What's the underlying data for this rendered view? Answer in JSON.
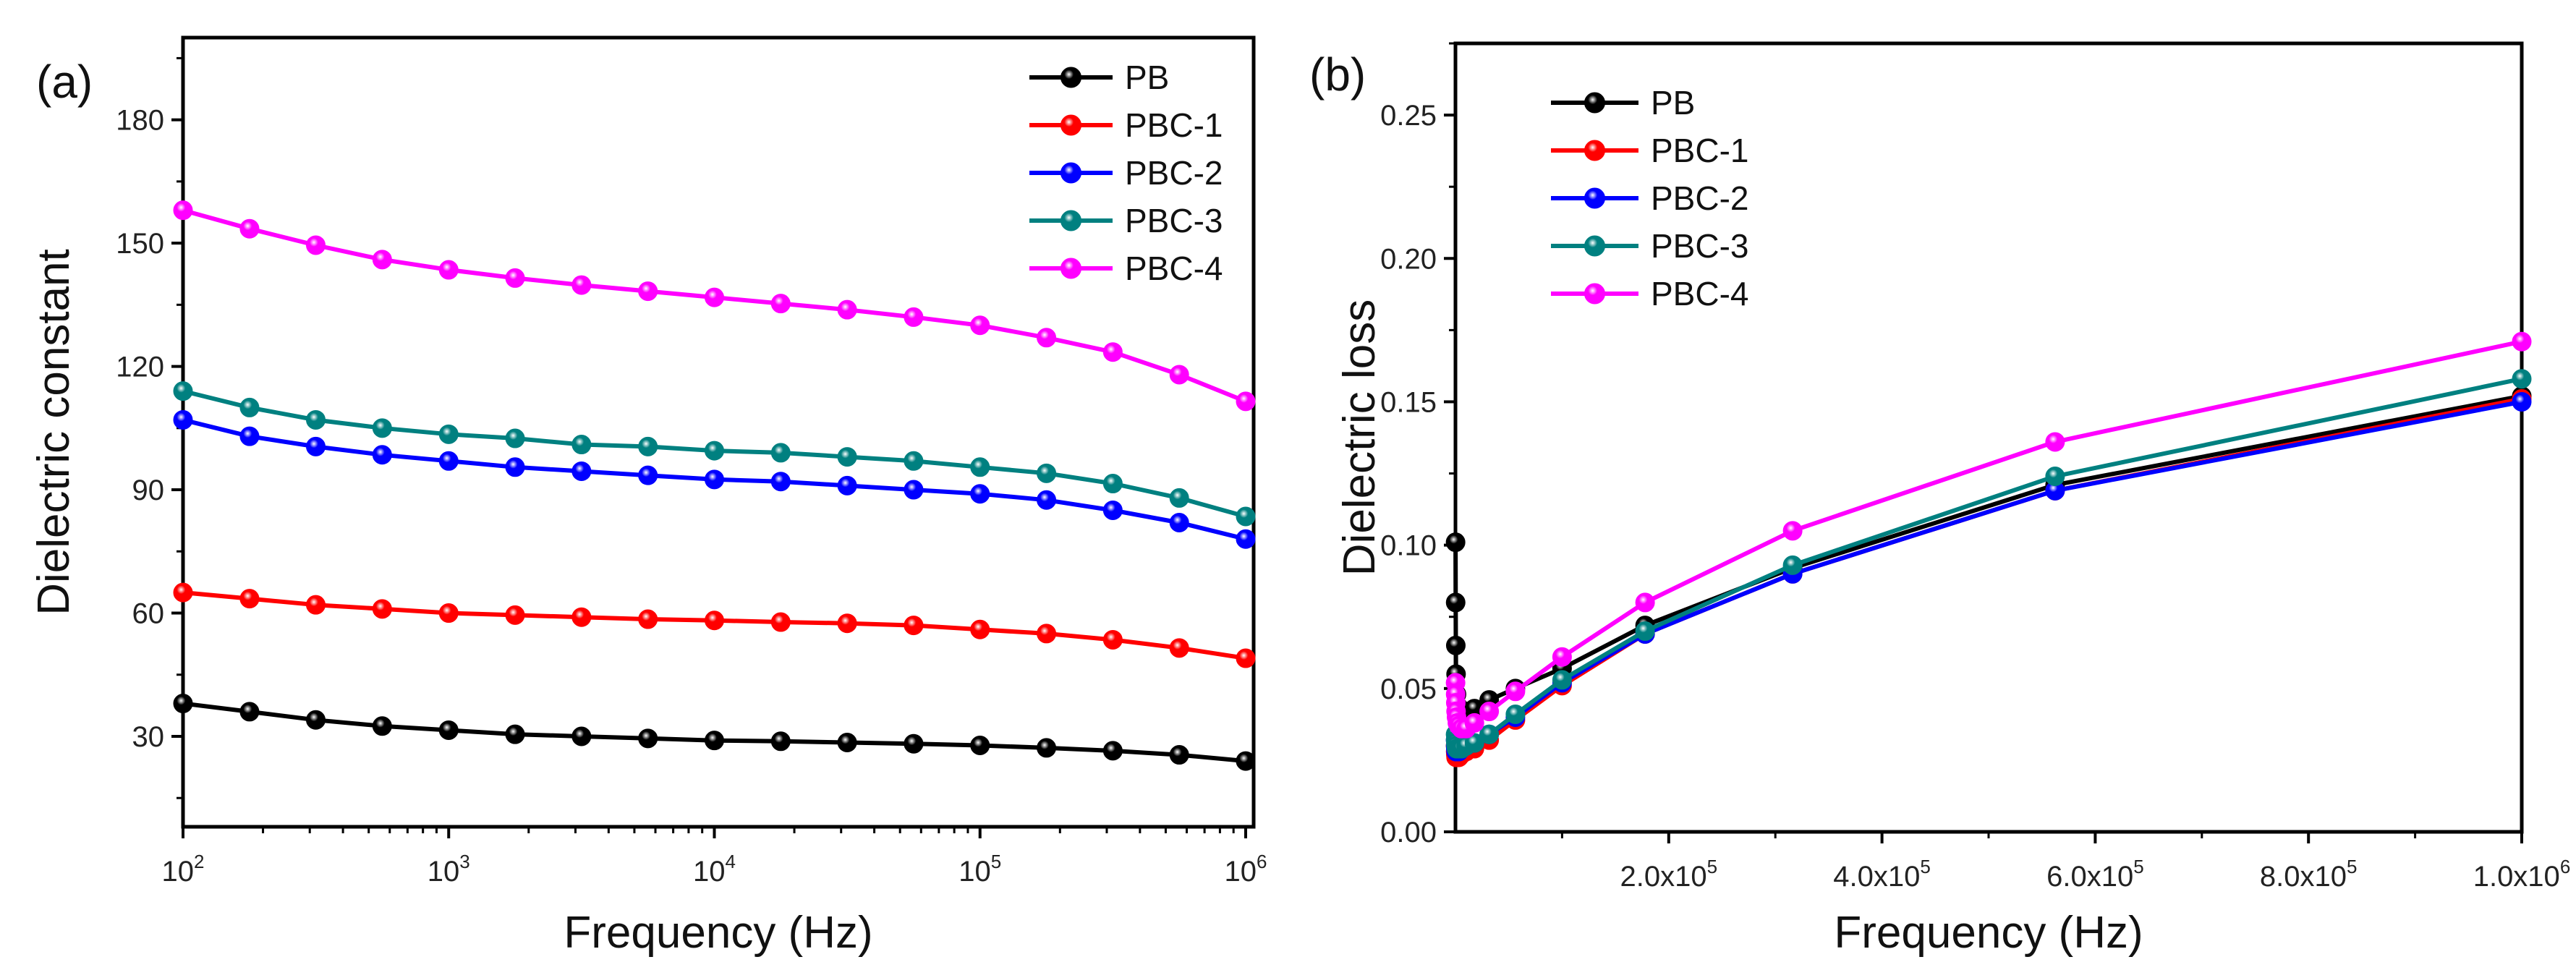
{
  "chart_data": [
    {
      "type": "line",
      "panel_label": "(a)",
      "xlabel": "Frequency (Hz)",
      "ylabel": "Dielectric constant",
      "xscale": "log",
      "xlim": [
        100,
        1000000
      ],
      "ylim": [
        8,
        200
      ],
      "grid": false,
      "legend_placement": "top-right",
      "x_ticks": [
        {
          "value": 100,
          "base": "10",
          "exp": "2"
        },
        {
          "value": 1000,
          "base": "10",
          "exp": "3"
        },
        {
          "value": 10000,
          "base": "10",
          "exp": "4"
        },
        {
          "value": 100000,
          "base": "10",
          "exp": "5"
        },
        {
          "value": 1000000,
          "base": "10",
          "exp": "6"
        }
      ],
      "y_ticks": [
        {
          "value": 30,
          "label": "30"
        },
        {
          "value": 60,
          "label": "60"
        },
        {
          "value": 90,
          "label": "90"
        },
        {
          "value": 120,
          "label": "120"
        },
        {
          "value": 150,
          "label": "150"
        },
        {
          "value": 180,
          "label": "180"
        }
      ],
      "x": [
        100,
        178,
        316,
        562,
        1000,
        1778,
        3162,
        5623,
        10000,
        17783,
        31623,
        56234,
        100000,
        177828,
        316228,
        562341,
        1000000
      ],
      "series": [
        {
          "name": "PB",
          "color": "#000000",
          "values": [
            38,
            36,
            34,
            32.5,
            31.5,
            30.5,
            30,
            29.5,
            29,
            28.8,
            28.5,
            28.2,
            27.8,
            27.2,
            26.5,
            25.5,
            24
          ]
        },
        {
          "name": "PBC-1",
          "color": "#ff0000",
          "values": [
            65,
            63.5,
            62,
            61,
            60,
            59.5,
            59,
            58.5,
            58.2,
            57.8,
            57.5,
            57,
            56,
            55,
            53.5,
            51.5,
            49
          ]
        },
        {
          "name": "PBC-2",
          "color": "#0000ff",
          "values": [
            107,
            103,
            100.5,
            98.5,
            97,
            95.5,
            94.5,
            93.5,
            92.5,
            92,
            91,
            90,
            89,
            87.5,
            85,
            82,
            78
          ]
        },
        {
          "name": "PBC-3",
          "color": "#008080",
          "values": [
            114,
            110,
            107,
            105,
            103.5,
            102.5,
            101,
            100.5,
            99.5,
            99,
            98,
            97,
            95.5,
            94,
            91.5,
            88,
            83.5
          ]
        },
        {
          "name": "PBC-4",
          "color": "#ff00ff",
          "values": [
            158,
            153.5,
            149.5,
            146,
            143.5,
            141.5,
            139.8,
            138.3,
            136.8,
            135.3,
            133.8,
            132,
            130,
            127,
            123.5,
            118,
            111.5
          ]
        }
      ]
    },
    {
      "type": "line",
      "panel_label": "(b)",
      "xlabel": "Frequency (Hz)",
      "ylabel": "Dielectric loss",
      "xscale": "linear",
      "xlim": [
        0,
        1000000
      ],
      "ylim": [
        0,
        0.275
      ],
      "grid": false,
      "legend_placement": "top-left",
      "x_ticks": [
        {
          "value": 200000,
          "base": "2.0x10",
          "exp": "5"
        },
        {
          "value": 400000,
          "base": "4.0x10",
          "exp": "5"
        },
        {
          "value": 600000,
          "base": "6.0x10",
          "exp": "5"
        },
        {
          "value": 800000,
          "base": "8.0x10",
          "exp": "5"
        },
        {
          "value": 1000000,
          "base": "1.0x10",
          "exp": "6"
        }
      ],
      "y_ticks": [
        {
          "value": 0,
          "label": "0.00"
        },
        {
          "value": 0.05,
          "label": "0.05"
        },
        {
          "value": 0.1,
          "label": "0.10"
        },
        {
          "value": 0.15,
          "label": "0.15"
        },
        {
          "value": 0.2,
          "label": "0.20"
        },
        {
          "value": 0.25,
          "label": "0.25"
        }
      ],
      "x": [
        100,
        178,
        316,
        562,
        1000,
        1778,
        3162,
        5623,
        10000,
        17783,
        31623,
        56234,
        100000,
        177828,
        316228,
        562341,
        1000000
      ],
      "series": [
        {
          "name": "PB",
          "color": "#000000",
          "values": [
            0.101,
            0.08,
            0.065,
            0.055,
            0.048,
            0.044,
            0.042,
            0.041,
            0.042,
            0.043,
            0.046,
            0.05,
            0.057,
            0.072,
            0.092,
            0.121,
            0.152
          ]
        },
        {
          "name": "PBC-1",
          "color": "#ff0000",
          "values": [
            0.03,
            0.028,
            0.027,
            0.026,
            0.026,
            0.026,
            0.026,
            0.027,
            0.028,
            0.029,
            0.032,
            0.039,
            0.051,
            0.069,
            0.09,
            0.119,
            0.151
          ]
        },
        {
          "name": "PBC-2",
          "color": "#0000ff",
          "values": [
            0.032,
            0.03,
            0.029,
            0.028,
            0.028,
            0.028,
            0.028,
            0.029,
            0.03,
            0.031,
            0.034,
            0.04,
            0.052,
            0.069,
            0.09,
            0.119,
            0.15
          ]
        },
        {
          "name": "PBC-3",
          "color": "#008080",
          "values": [
            0.034,
            0.032,
            0.031,
            0.03,
            0.029,
            0.029,
            0.029,
            0.029,
            0.03,
            0.031,
            0.034,
            0.041,
            0.053,
            0.07,
            0.093,
            0.124,
            0.158
          ]
        },
        {
          "name": "PBC-4",
          "color": "#ff00ff",
          "values": [
            0.052,
            0.048,
            0.045,
            0.042,
            0.04,
            0.038,
            0.037,
            0.036,
            0.036,
            0.038,
            0.042,
            0.049,
            0.061,
            0.08,
            0.105,
            0.136,
            0.171
          ]
        }
      ]
    }
  ]
}
